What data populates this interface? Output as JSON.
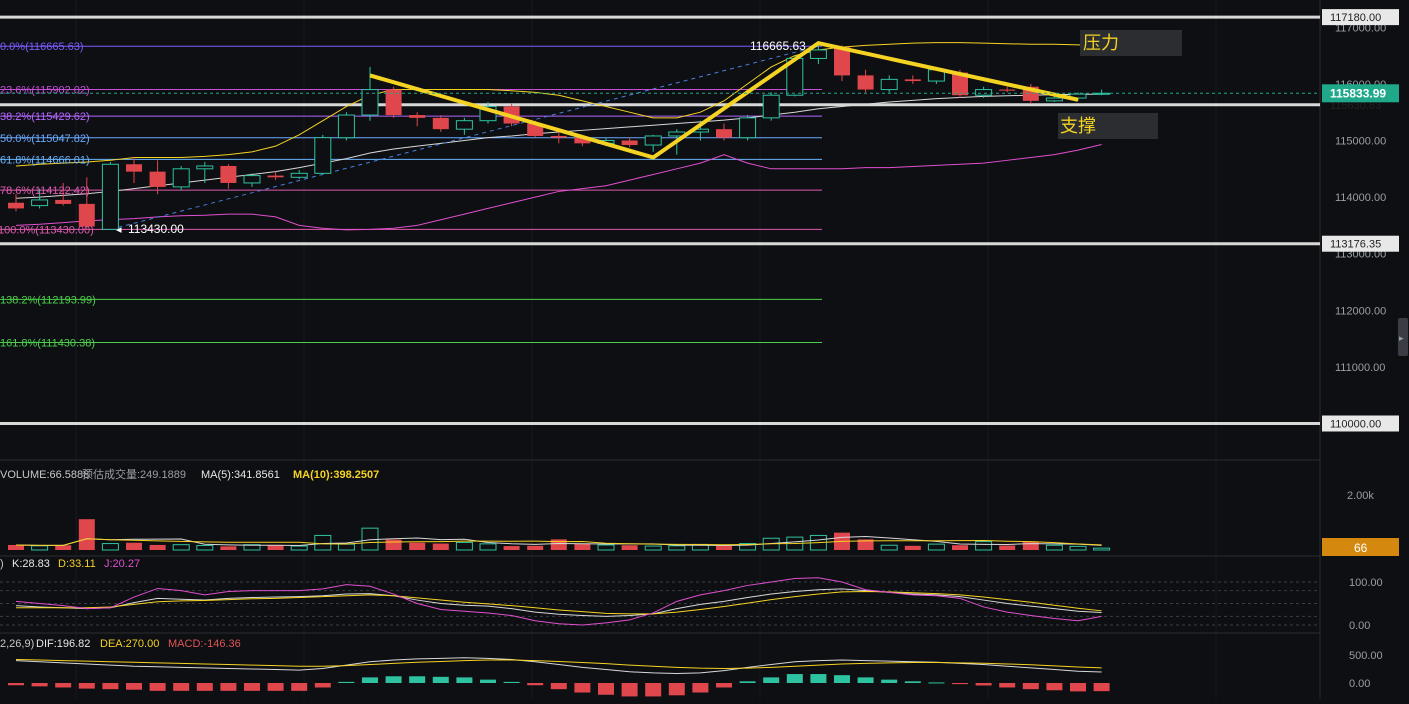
{
  "chart_data": {
    "type": "candlestick",
    "price_axis": {
      "ticks": [
        "117000.00",
        "116000.00",
        "115000.00",
        "114000.00",
        "113000.00",
        "112000.00",
        "111000.00",
        "110000.00"
      ],
      "current_price": "115833.99",
      "partial_label": "115630.63"
    },
    "horizontal_lines": [
      {
        "price": 117180,
        "label": "117180.00"
      },
      {
        "price": 115630.63,
        "label": ""
      },
      {
        "price": 113176.35,
        "label": "113176.35"
      },
      {
        "price": 110000,
        "label": "110000.00"
      }
    ],
    "fib_levels": [
      {
        "price": 116665.63,
        "label": "0.0%(116665.63)",
        "color": "#7b5cff"
      },
      {
        "price": 115902.02,
        "label": "23.6%(115902.02)",
        "color": "#c44fd6"
      },
      {
        "price": 115429.62,
        "label": "38.2%(115429.62)",
        "color": "#b266ff"
      },
      {
        "price": 115047.82,
        "label": "50.0%(115047.82)",
        "color": "#6aa8ff"
      },
      {
        "price": 114666.01,
        "label": "61.8%(114666.01)",
        "color": "#6ab4ff"
      },
      {
        "price": 114122.42,
        "label": "78.6%(114122.42)",
        "color": "#e05ab0"
      },
      {
        "price": 113430.0,
        "label": "100.0%(113430.00)",
        "color": "#e05ab0"
      },
      {
        "price": 112193.99,
        "label": "138.2%(112193.99)",
        "color": "#4ccf4c"
      },
      {
        "price": 111430.38,
        "label": "161.8%(111430.38)",
        "color": "#4ccf4c"
      }
    ],
    "annotations": {
      "high_label": "116665.63",
      "low_label": "113430.00",
      "resistance_label": "压力",
      "support_label": "支撑"
    },
    "candles": [
      {
        "o": 113900,
        "h": 114050,
        "l": 113750,
        "c": 113800
      },
      {
        "o": 113850,
        "h": 114150,
        "l": 113800,
        "c": 113950
      },
      {
        "o": 113950,
        "h": 114250,
        "l": 113850,
        "c": 113880
      },
      {
        "o": 113880,
        "h": 114350,
        "l": 113420,
        "c": 113480
      },
      {
        "o": 113430,
        "h": 114620,
        "l": 113420,
        "c": 114580
      },
      {
        "o": 114580,
        "h": 114700,
        "l": 114250,
        "c": 114450
      },
      {
        "o": 114450,
        "h": 114650,
        "l": 114050,
        "c": 114180
      },
      {
        "o": 114180,
        "h": 114550,
        "l": 114120,
        "c": 114500
      },
      {
        "o": 114500,
        "h": 114620,
        "l": 114250,
        "c": 114550
      },
      {
        "o": 114550,
        "h": 114580,
        "l": 114150,
        "c": 114250
      },
      {
        "o": 114250,
        "h": 114420,
        "l": 114180,
        "c": 114380
      },
      {
        "o": 114380,
        "h": 114450,
        "l": 114300,
        "c": 114350
      },
      {
        "o": 114350,
        "h": 114480,
        "l": 114320,
        "c": 114420
      },
      {
        "o": 114420,
        "h": 115100,
        "l": 114400,
        "c": 115050
      },
      {
        "o": 115050,
        "h": 115500,
        "l": 115000,
        "c": 115450
      },
      {
        "o": 115450,
        "h": 116300,
        "l": 115350,
        "c": 115900
      },
      {
        "o": 115900,
        "h": 115950,
        "l": 115400,
        "c": 115450
      },
      {
        "o": 115450,
        "h": 115500,
        "l": 115250,
        "c": 115400
      },
      {
        "o": 115400,
        "h": 115450,
        "l": 115150,
        "c": 115200
      },
      {
        "o": 115200,
        "h": 115400,
        "l": 115100,
        "c": 115350
      },
      {
        "o": 115350,
        "h": 115680,
        "l": 115300,
        "c": 115600
      },
      {
        "o": 115600,
        "h": 115650,
        "l": 115250,
        "c": 115300
      },
      {
        "o": 115300,
        "h": 115350,
        "l": 115050,
        "c": 115080
      },
      {
        "o": 115080,
        "h": 115150,
        "l": 114950,
        "c": 115050
      },
      {
        "o": 115050,
        "h": 115100,
        "l": 114900,
        "c": 114950
      },
      {
        "o": 114950,
        "h": 115050,
        "l": 114900,
        "c": 115000
      },
      {
        "o": 115000,
        "h": 115050,
        "l": 114880,
        "c": 114920
      },
      {
        "o": 114920,
        "h": 115100,
        "l": 114800,
        "c": 115080
      },
      {
        "o": 115080,
        "h": 115200,
        "l": 114750,
        "c": 115150
      },
      {
        "o": 115150,
        "h": 115350,
        "l": 115000,
        "c": 115200
      },
      {
        "o": 115200,
        "h": 115300,
        "l": 115000,
        "c": 115050
      },
      {
        "o": 115050,
        "h": 115450,
        "l": 115000,
        "c": 115400
      },
      {
        "o": 115400,
        "h": 115850,
        "l": 115350,
        "c": 115800
      },
      {
        "o": 115800,
        "h": 116500,
        "l": 115780,
        "c": 116450
      },
      {
        "o": 116450,
        "h": 116700,
        "l": 116350,
        "c": 116600
      },
      {
        "o": 116650,
        "h": 116680,
        "l": 116050,
        "c": 116150
      },
      {
        "o": 116150,
        "h": 116250,
        "l": 115850,
        "c": 115900
      },
      {
        "o": 115900,
        "h": 116150,
        "l": 115850,
        "c": 116080
      },
      {
        "o": 116080,
        "h": 116150,
        "l": 116000,
        "c": 116050
      },
      {
        "o": 116050,
        "h": 116300,
        "l": 116000,
        "c": 116250
      },
      {
        "o": 116200,
        "h": 116250,
        "l": 115750,
        "c": 115800
      },
      {
        "o": 115800,
        "h": 115950,
        "l": 115750,
        "c": 115900
      },
      {
        "o": 115900,
        "h": 115950,
        "l": 115850,
        "c": 115880
      },
      {
        "o": 115950,
        "h": 116000,
        "l": 115650,
        "c": 115700
      },
      {
        "o": 115700,
        "h": 115800,
        "l": 115680,
        "c": 115750
      },
      {
        "o": 115750,
        "h": 115850,
        "l": 115700,
        "c": 115820
      },
      {
        "o": 115820,
        "h": 115900,
        "l": 115800,
        "c": 115834
      }
    ],
    "boll": {
      "upper": [
        114550,
        114580,
        114600,
        114620,
        114650,
        114700,
        114700,
        114700,
        114720,
        114750,
        114800,
        114900,
        115100,
        115350,
        115600,
        115800,
        115900,
        115900,
        115900,
        115900,
        115900,
        115880,
        115850,
        115800,
        115700,
        115600,
        115500,
        115400,
        115400,
        115500,
        115700,
        116000,
        116300,
        116500,
        116600,
        116650,
        116680,
        116700,
        116720,
        116730,
        116730,
        116720,
        116710,
        116700,
        116700,
        116690,
        116690
      ],
      "middle": [
        113980,
        114000,
        114030,
        114060,
        114100,
        114150,
        114200,
        114250,
        114300,
        114350,
        114400,
        114450,
        114520,
        114600,
        114680,
        114780,
        114850,
        114900,
        114950,
        115000,
        115050,
        115080,
        115120,
        115150,
        115180,
        115210,
        115240,
        115270,
        115300,
        115330,
        115360,
        115400,
        115450,
        115500,
        115560,
        115600,
        115640,
        115680,
        115710,
        115740,
        115760,
        115780,
        115790,
        115800,
        115810,
        115815,
        115820
      ],
      "lower": [
        113500,
        113520,
        113550,
        113580,
        113600,
        113620,
        113650,
        113670,
        113680,
        113700,
        113700,
        113650,
        113500,
        113450,
        113420,
        113430,
        113450,
        113500,
        113600,
        113700,
        113800,
        113900,
        114000,
        114100,
        114150,
        114200,
        114300,
        114400,
        114500,
        114600,
        114750,
        114600,
        114500,
        114500,
        114500,
        114500,
        114520,
        114520,
        114540,
        114560,
        114580,
        114600,
        114650,
        114700,
        114750,
        114830,
        114930
      ]
    },
    "volume": {
      "header": "VOLUME:66.5888",
      "estimate": "预估成交量:249.1889",
      "ma5": "MA(5):341.8561",
      "ma10": "MA(10):398.2507",
      "ticks": [
        "2.00k"
      ],
      "current": "66",
      "values": [
        180,
        150,
        170,
        1100,
        230,
        260,
        180,
        190,
        160,
        130,
        190,
        180,
        140,
        520,
        210,
        780,
        370,
        260,
        230,
        270,
        220,
        140,
        150,
        380,
        220,
        180,
        170,
        140,
        150,
        200,
        150,
        230,
        420,
        460,
        520,
        620,
        380,
        170,
        150,
        210,
        170,
        300,
        160,
        300,
        170,
        130,
        66
      ]
    },
    "kdj": {
      "header_prefix": ")",
      "k_label": "K:28.83",
      "d_label": "D:33.11",
      "j_label": "J:20.27",
      "ticks": [
        "100.00",
        "0.00"
      ],
      "k": [
        45,
        42,
        40,
        38,
        40,
        52,
        62,
        60,
        58,
        62,
        64,
        65,
        66,
        68,
        72,
        73,
        68,
        58,
        50,
        46,
        44,
        38,
        30,
        25,
        22,
        20,
        22,
        26,
        38,
        48,
        55,
        64,
        72,
        78,
        82,
        84,
        80,
        76,
        72,
        70,
        66,
        58,
        50,
        44,
        38,
        32,
        29
      ],
      "d": [
        40,
        40,
        40,
        40,
        42,
        48,
        54,
        56,
        57,
        59,
        61,
        62,
        64,
        66,
        68,
        70,
        68,
        63,
        58,
        53,
        49,
        45,
        40,
        35,
        31,
        27,
        26,
        26,
        30,
        36,
        43,
        51,
        59,
        66,
        72,
        77,
        78,
        77,
        75,
        73,
        70,
        65,
        59,
        53,
        46,
        39,
        33
      ],
      "j": [
        55,
        50,
        45,
        38,
        40,
        65,
        85,
        80,
        70,
        78,
        80,
        80,
        80,
        84,
        94,
        90,
        72,
        50,
        36,
        32,
        28,
        22,
        10,
        3,
        0,
        5,
        12,
        28,
        55,
        70,
        80,
        92,
        100,
        108,
        110,
        100,
        82,
        76,
        70,
        68,
        62,
        42,
        30,
        22,
        15,
        10,
        20
      ]
    },
    "macd": {
      "header_prefix": "2,26,9)",
      "dif_label": "DIF:196.82",
      "dea_label": "DEA:270.00",
      "macd_label": "MACD:-146.36",
      "ticks": [
        "500.00",
        "0.00"
      ],
      "dif": [
        400,
        380,
        360,
        340,
        320,
        300,
        290,
        280,
        270,
        260,
        250,
        240,
        230,
        260,
        320,
        380,
        410,
        430,
        440,
        450,
        440,
        420,
        380,
        330,
        280,
        240,
        200,
        180,
        170,
        180,
        220,
        280,
        330,
        380,
        400,
        410,
        400,
        390,
        380,
        370,
        350,
        330,
        300,
        270,
        240,
        210,
        197
      ],
      "dea": [
        420,
        410,
        400,
        390,
        380,
        370,
        360,
        350,
        340,
        330,
        320,
        310,
        300,
        300,
        310,
        330,
        350,
        370,
        385,
        400,
        410,
        410,
        400,
        385,
        365,
        345,
        320,
        300,
        280,
        265,
        260,
        265,
        280,
        300,
        320,
        340,
        350,
        360,
        365,
        365,
        360,
        352,
        340,
        325,
        305,
        285,
        270
      ],
      "hist": [
        -40,
        -60,
        -80,
        -100,
        -110,
        -120,
        -140,
        -140,
        -140,
        -140,
        -140,
        -140,
        -140,
        -80,
        20,
        100,
        120,
        120,
        110,
        100,
        60,
        20,
        -40,
        -110,
        -170,
        -210,
        -240,
        -240,
        -220,
        -170,
        -80,
        30,
        100,
        160,
        160,
        140,
        100,
        60,
        30,
        10,
        -20,
        -44,
        -80,
        -110,
        -130,
        -150,
        -146
      ]
    }
  }
}
